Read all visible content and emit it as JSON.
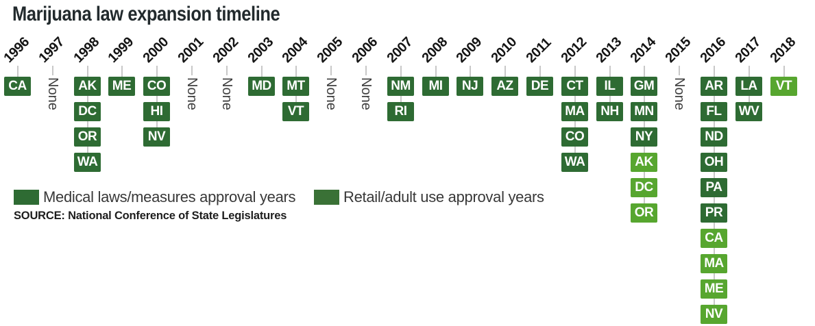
{
  "title": "Marijuana law expansion timeline",
  "source": "SOURCE: National Conference of State Legislatures",
  "none_text": "None",
  "legend": {
    "medical_label": "Medical laws/measures approval years",
    "retail_label": "Retail/adult use approval years"
  },
  "colors": {
    "medical_green": "#2e6b33",
    "retail_bright_green": "#57a62f",
    "legend_medical_swatch": "#2e6b33",
    "legend_retail_swatch": "#3a7136",
    "connector_gray": "#c8c8c8",
    "title_color": "#222a2d"
  },
  "chart_data": {
    "type": "timeline",
    "title": "Marijuana law expansion timeline",
    "legend": [
      {
        "name": "Medical laws/measures approval years",
        "color": "#2e6b33"
      },
      {
        "name": "Retail/adult use approval years",
        "color": "#3a7136"
      }
    ],
    "layout_hints": {
      "orientation": "horizontal-years-vertical-stacks",
      "year_labels_rotated": -45,
      "none_labels_rotated": 90
    },
    "columns": [
      {
        "year": "1996",
        "states": [
          {
            "label": "CA",
            "type": "medical"
          }
        ]
      },
      {
        "year": "1997",
        "none": true
      },
      {
        "year": "1998",
        "states": [
          {
            "label": "AK",
            "type": "medical"
          },
          {
            "label": "DC",
            "type": "medical"
          },
          {
            "label": "OR",
            "type": "medical"
          },
          {
            "label": "WA",
            "type": "medical"
          }
        ]
      },
      {
        "year": "1999",
        "states": [
          {
            "label": "ME",
            "type": "medical"
          }
        ]
      },
      {
        "year": "2000",
        "states": [
          {
            "label": "CO",
            "type": "medical"
          },
          {
            "label": "HI",
            "type": "medical"
          },
          {
            "label": "NV",
            "type": "medical"
          }
        ]
      },
      {
        "year": "2001",
        "none": true
      },
      {
        "year": "2002",
        "none": true
      },
      {
        "year": "2003",
        "states": [
          {
            "label": "MD",
            "type": "medical"
          }
        ]
      },
      {
        "year": "2004",
        "states": [
          {
            "label": "MT",
            "type": "medical"
          },
          {
            "label": "VT",
            "type": "medical"
          }
        ]
      },
      {
        "year": "2005",
        "none": true
      },
      {
        "year": "2006",
        "none": true
      },
      {
        "year": "2007",
        "states": [
          {
            "label": "NM",
            "type": "medical"
          },
          {
            "label": "RI",
            "type": "medical"
          }
        ]
      },
      {
        "year": "2008",
        "states": [
          {
            "label": "MI",
            "type": "medical"
          }
        ]
      },
      {
        "year": "2009",
        "states": [
          {
            "label": "NJ",
            "type": "medical"
          }
        ]
      },
      {
        "year": "2010",
        "states": [
          {
            "label": "AZ",
            "type": "medical"
          }
        ]
      },
      {
        "year": "2011",
        "states": [
          {
            "label": "DE",
            "type": "medical"
          }
        ]
      },
      {
        "year": "2012",
        "states": [
          {
            "label": "CT",
            "type": "medical"
          },
          {
            "label": "MA",
            "type": "medical"
          },
          {
            "label": "CO",
            "type": "medical"
          },
          {
            "label": "WA",
            "type": "medical"
          }
        ]
      },
      {
        "year": "2013",
        "states": [
          {
            "label": "IL",
            "type": "medical"
          },
          {
            "label": "NH",
            "type": "medical"
          }
        ]
      },
      {
        "year": "2014",
        "states": [
          {
            "label": "GM",
            "type": "medical"
          },
          {
            "label": "MN",
            "type": "medical"
          },
          {
            "label": "NY",
            "type": "medical"
          },
          {
            "label": "AK",
            "type": "retail"
          },
          {
            "label": "DC",
            "type": "retail"
          },
          {
            "label": "OR",
            "type": "retail"
          }
        ]
      },
      {
        "year": "2015",
        "none": true
      },
      {
        "year": "2016",
        "states": [
          {
            "label": "AR",
            "type": "medical"
          },
          {
            "label": "FL",
            "type": "medical"
          },
          {
            "label": "ND",
            "type": "medical"
          },
          {
            "label": "OH",
            "type": "medical"
          },
          {
            "label": "PA",
            "type": "medical"
          },
          {
            "label": "PR",
            "type": "medical"
          },
          {
            "label": "CA",
            "type": "retail"
          },
          {
            "label": "MA",
            "type": "retail"
          },
          {
            "label": "ME",
            "type": "retail"
          },
          {
            "label": "NV",
            "type": "retail"
          }
        ]
      },
      {
        "year": "2017",
        "states": [
          {
            "label": "LA",
            "type": "medical"
          },
          {
            "label": "WV",
            "type": "medical"
          }
        ]
      },
      {
        "year": "2018",
        "states": [
          {
            "label": "VT",
            "type": "retail"
          }
        ]
      }
    ]
  }
}
